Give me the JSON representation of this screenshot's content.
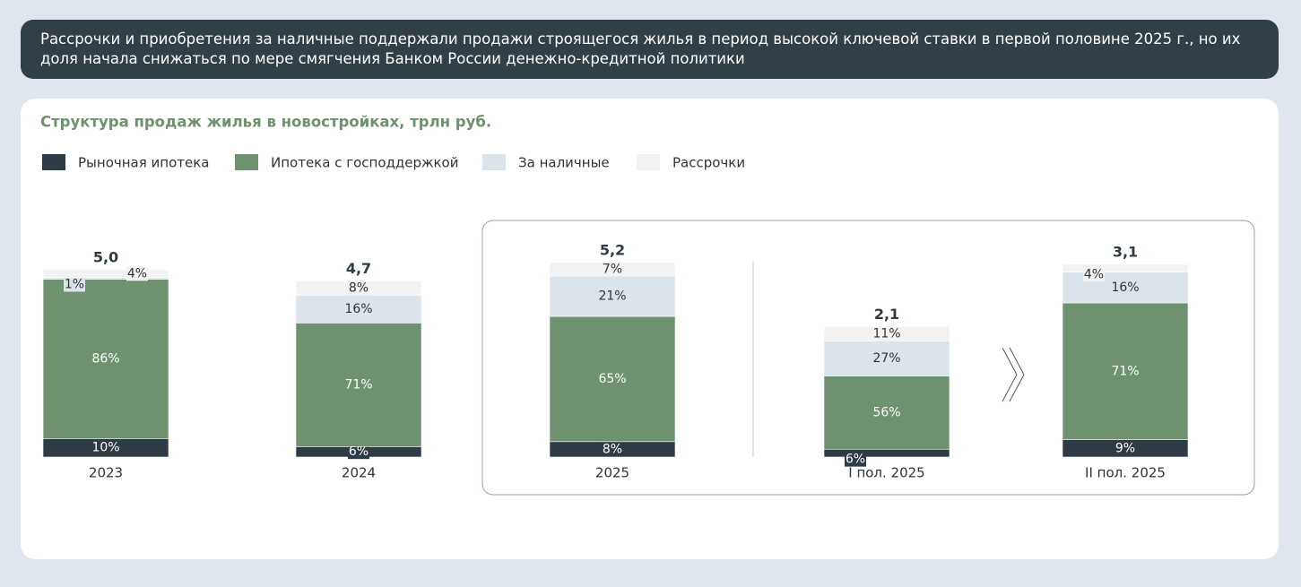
{
  "header": {
    "text": "Рассрочки и приобретения за наличные поддержали продажи строящегося жилья в период высокой ключевой ставки в первой половине 2025 г., но их доля начала снижаться по мере смягчения Банком России денежно-кредитной политики"
  },
  "chart_data": {
    "type": "stacked_bar",
    "title": "Структура продаж жилья в новостройках, трлн руб.",
    "categories": [
      "2023",
      "2024",
      "2025",
      "I пол. 2025",
      "II пол. 2025"
    ],
    "series": [
      {
        "name": "Рыночная ипотека",
        "color": "#2f3b44",
        "values": [
          10,
          6,
          8,
          6,
          9
        ],
        "value_labels": [
          "10%",
          "6%",
          "8%",
          "6%",
          "9%"
        ]
      },
      {
        "name": "Ипотека с господдержкой",
        "color": "#6e9170",
        "values": [
          86,
          71,
          65,
          56,
          71
        ],
        "value_labels": [
          "86%",
          "71%",
          "65%",
          "56%",
          "71%"
        ]
      },
      {
        "name": "За наличные",
        "color": "#dce4eb",
        "values": [
          1,
          16,
          21,
          27,
          16
        ],
        "value_labels": [
          "1%",
          "16%",
          "21%",
          "27%",
          "16%"
        ]
      },
      {
        "name": "Рассрочки",
        "color": "#f2f2f2",
        "values": [
          4,
          8,
          7,
          11,
          4
        ],
        "value_labels": [
          "4%",
          "8%",
          "7%",
          "11%",
          "4%"
        ]
      }
    ],
    "totals": {
      "values": [
        5.0,
        4.7,
        5.2,
        2.1,
        3.1
      ],
      "value_labels": [
        "5,0",
        "4,7",
        "5,2",
        "2,1",
        "3,1"
      ]
    }
  }
}
